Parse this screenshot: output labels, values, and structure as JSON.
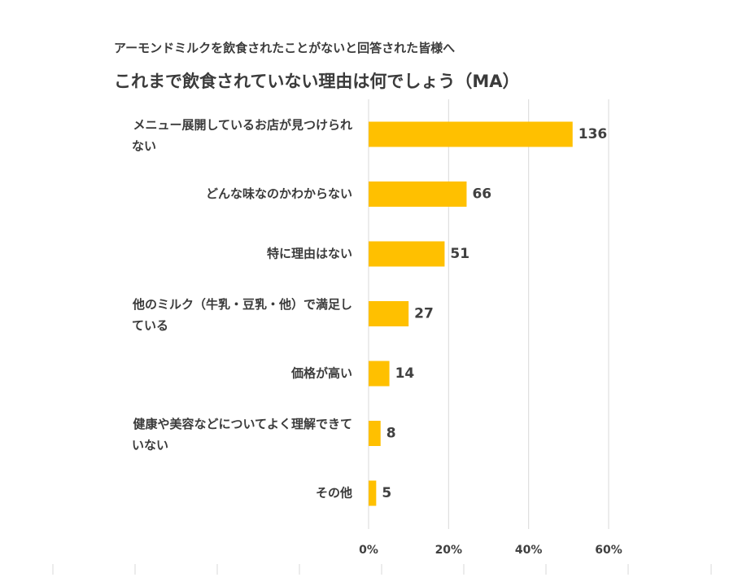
{
  "chart_data": {
    "type": "bar",
    "orientation": "horizontal",
    "subtitle": "アーモンドミルクを飲食されたことがないと回答された皆様へ",
    "title": "これまで飲食されていない理由は何でしょう（MA）",
    "categories": [
      [
        "メニュー展開しているお店が見つけられ",
        "ない"
      ],
      [
        "どんな味なのかわからない"
      ],
      [
        "特に理由はない"
      ],
      [
        "他のミルク（牛乳・豆乳・他）で満足し",
        "ている"
      ],
      [
        "価格が高い"
      ],
      [
        "健康や美容などについてよく理解できて",
        "いない"
      ],
      [
        "その他"
      ]
    ],
    "values": [
      0.51,
      0.245,
      0.19,
      0.1,
      0.052,
      0.03,
      0.019
    ],
    "data_labels": [
      "136",
      "66",
      "51",
      "27",
      "14",
      "8",
      "5"
    ],
    "xlim": [
      0,
      0.6
    ],
    "x_ticks": [
      0,
      0.2,
      0.4,
      0.6
    ],
    "x_tick_labels": [
      "0%",
      "20%",
      "40%",
      "60%"
    ],
    "grid": true,
    "bar_color": "#FFC000"
  }
}
